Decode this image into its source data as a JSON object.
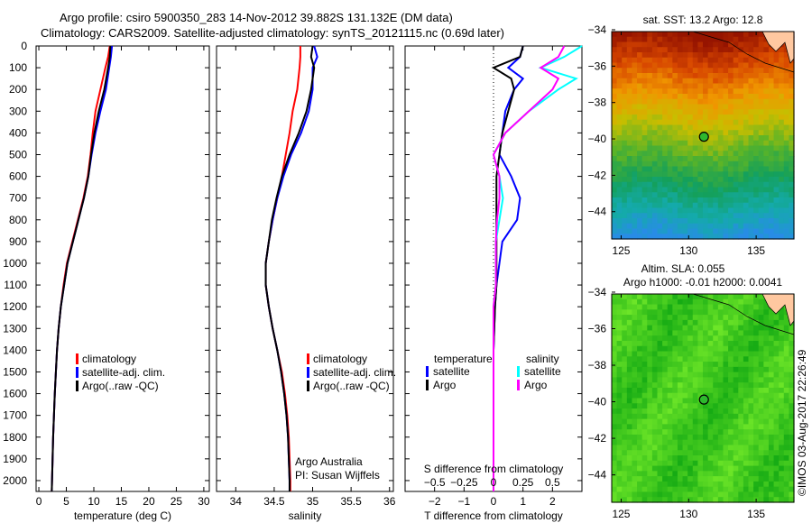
{
  "title_line1": "Argo profile: csiro 5900350_283 14-Nov-2012 39.882S 131.132E (DM data)",
  "title_line2": "Climatology: CARS2009. Satellite-adjusted climatology: synTS_20121115.nc (0.69d later)",
  "credit": "©IMOS 03-Aug-2017 22:26:49",
  "colors": {
    "climatology": "#ff0000",
    "satellite": "#0000ff",
    "argo": "#000000",
    "sal_satellite": "#00ffff",
    "sal_argo": "#ff00ff"
  },
  "chart_data": [
    {
      "type": "line",
      "id": "temp",
      "xlabel": "temperature (deg C)",
      "ylabel": "",
      "xlim": [
        -0.5,
        31
      ],
      "ylim": [
        2050,
        0
      ],
      "xticks": [
        0,
        5,
        10,
        15,
        20,
        25,
        30
      ],
      "yticks": [
        0,
        100,
        200,
        300,
        400,
        500,
        600,
        700,
        800,
        900,
        1000,
        1100,
        1200,
        1300,
        1400,
        1500,
        1600,
        1700,
        1800,
        1900,
        2000
      ],
      "legend": [
        "climatology",
        "satellite-adj. clim.",
        "Argo(..raw -QC)"
      ],
      "legend_position": "lower-center",
      "depth": [
        0,
        50,
        100,
        200,
        300,
        400,
        500,
        600,
        700,
        800,
        900,
        1000,
        1100,
        1200,
        1300,
        1400,
        1600,
        1800,
        2000,
        2050
      ],
      "series": [
        {
          "name": "climatology",
          "values": [
            12.9,
            12.6,
            12.1,
            11.2,
            10.3,
            9.8,
            9.4,
            8.9,
            8.1,
            7.1,
            6.1,
            5.1,
            4.5,
            4.0,
            3.6,
            3.3,
            2.9,
            2.6,
            2.4,
            2.35
          ]
        },
        {
          "name": "satellite-adj. clim.",
          "values": [
            13.3,
            13.1,
            12.8,
            12.2,
            11.2,
            10.3,
            9.6,
            9.0,
            8.2,
            7.2,
            6.2,
            5.2,
            4.6,
            4.0,
            3.6,
            3.3,
            2.9,
            2.6,
            2.4,
            2.35
          ]
        },
        {
          "name": "Argo(..raw -QC)",
          "values": [
            13.0,
            12.9,
            12.6,
            11.9,
            10.9,
            10.1,
            9.5,
            9.0,
            8.2,
            7.2,
            6.2,
            5.2,
            4.6,
            4.0,
            3.6,
            3.3,
            2.9,
            2.6,
            2.4,
            2.35
          ]
        }
      ]
    },
    {
      "type": "line",
      "id": "sal",
      "xlabel": "salinity",
      "xlim": [
        33.75,
        36.05
      ],
      "ylim": [
        2050,
        0
      ],
      "xticks": [
        34,
        34.5,
        35,
        35.5,
        36
      ],
      "legend": [
        "climatology",
        "satellite-adj. clim.",
        "Argo(..raw -QC)"
      ],
      "legend_position": "lower-center",
      "annotation1": "Argo Australia",
      "annotation2": "PI: Susan Wijffels",
      "depth": [
        0,
        50,
        100,
        200,
        300,
        400,
        500,
        600,
        700,
        800,
        900,
        1000,
        1100,
        1200,
        1300,
        1400,
        1500,
        1600,
        1700,
        1800,
        2000,
        2050
      ],
      "series": [
        {
          "name": "climatology",
          "values": [
            34.84,
            34.84,
            34.83,
            34.8,
            34.74,
            34.7,
            34.65,
            34.6,
            34.54,
            34.48,
            34.43,
            34.39,
            34.39,
            34.43,
            34.48,
            34.54,
            34.6,
            34.64,
            34.67,
            34.69,
            34.71,
            34.71
          ]
        },
        {
          "name": "satellite-adj. clim.",
          "values": [
            35.02,
            35.06,
            35.0,
            35.0,
            34.95,
            34.85,
            34.72,
            34.62,
            34.54,
            34.48,
            34.43,
            34.39,
            34.39,
            34.43,
            34.48,
            34.54,
            34.59,
            34.63,
            34.66,
            34.68,
            34.7,
            34.7
          ]
        },
        {
          "name": "Argo(..raw -QC)",
          "values": [
            35.0,
            34.98,
            35.02,
            34.98,
            34.92,
            34.82,
            34.7,
            34.6,
            34.53,
            34.47,
            34.43,
            34.39,
            34.39,
            34.43,
            34.48,
            34.54,
            34.59,
            34.63,
            34.66,
            34.68,
            34.7,
            34.7
          ]
        }
      ]
    },
    {
      "type": "line",
      "id": "diff",
      "xlabel": "T difference from climatology",
      "xlabel_top": "S difference from climatology",
      "xlim": [
        -3.0,
        3.0
      ],
      "ylim": [
        2050,
        0
      ],
      "xticks": [
        -2,
        -1,
        0,
        1,
        2
      ],
      "xticks_s": [
        -0.5,
        -0.25,
        0,
        0.25,
        0.5
      ],
      "legend_t_title": "temperature",
      "legend_s_title": "salinity",
      "legend": [
        "satellite",
        "Argo",
        "satellite",
        "Argo"
      ],
      "depth": [
        0,
        50,
        100,
        150,
        200,
        300,
        400,
        500,
        600,
        700,
        800,
        900,
        1000,
        1100,
        1200,
        1400,
        1600,
        1800,
        2000,
        2050
      ],
      "series": [
        {
          "name": "T satellite",
          "values": [
            1.0,
            0.9,
            0.5,
            1.0,
            0.7,
            0.4,
            0.3,
            0.2,
            0.6,
            0.9,
            0.8,
            0.3,
            0.2,
            0.1,
            0.05,
            0.0,
            0.0,
            0.0,
            0.0,
            0.0
          ]
        },
        {
          "name": "T Argo",
          "values": [
            1.0,
            0.9,
            0.0,
            0.6,
            0.7,
            0.5,
            0.3,
            0.2,
            0.1,
            0.1,
            0.1,
            0.1,
            0.1,
            0.1,
            0.05,
            0.0,
            0.0,
            0.0,
            0.0,
            0.0
          ]
        },
        {
          "name": "S satellite",
          "values": [
            0.75,
            0.6,
            0.4,
            0.7,
            0.55,
            0.3,
            0.1,
            0.0,
            0.05,
            0.08,
            0.05,
            0.02,
            0.02,
            0.02,
            0.0,
            0.0,
            0.0,
            0.0,
            0.0,
            0.0
          ]
        },
        {
          "name": "S Argo",
          "values": [
            0.6,
            0.55,
            0.4,
            0.55,
            0.5,
            0.3,
            0.1,
            0.0,
            0.05,
            0.05,
            0.03,
            0.02,
            0.02,
            0.02,
            0.0,
            0.0,
            0.0,
            0.0,
            0.0,
            0.0
          ]
        }
      ]
    },
    {
      "type": "heatmap",
      "id": "sst",
      "title": "sat. SST: 13.2 Argo: 12.8",
      "xlim": [
        124.3,
        137.8
      ],
      "ylim": [
        -45.5,
        -34.1
      ],
      "xticks": [
        125,
        130,
        135
      ],
      "yticks": [
        -34,
        -36,
        -38,
        -40,
        -42,
        -44
      ],
      "point": [
        131.132,
        -39.882
      ]
    },
    {
      "type": "heatmap",
      "id": "sla",
      "title": "Altim. SLA: 0.055",
      "subtitle": "Argo h1000: -0.01 h2000: 0.0041",
      "xlim": [
        124.3,
        137.8
      ],
      "ylim": [
        -45.5,
        -34.1
      ],
      "xticks": [
        125,
        130,
        135
      ],
      "yticks": [
        -34,
        -36,
        -38,
        -40,
        -42,
        -44
      ],
      "point": [
        131.132,
        -39.882
      ]
    }
  ]
}
